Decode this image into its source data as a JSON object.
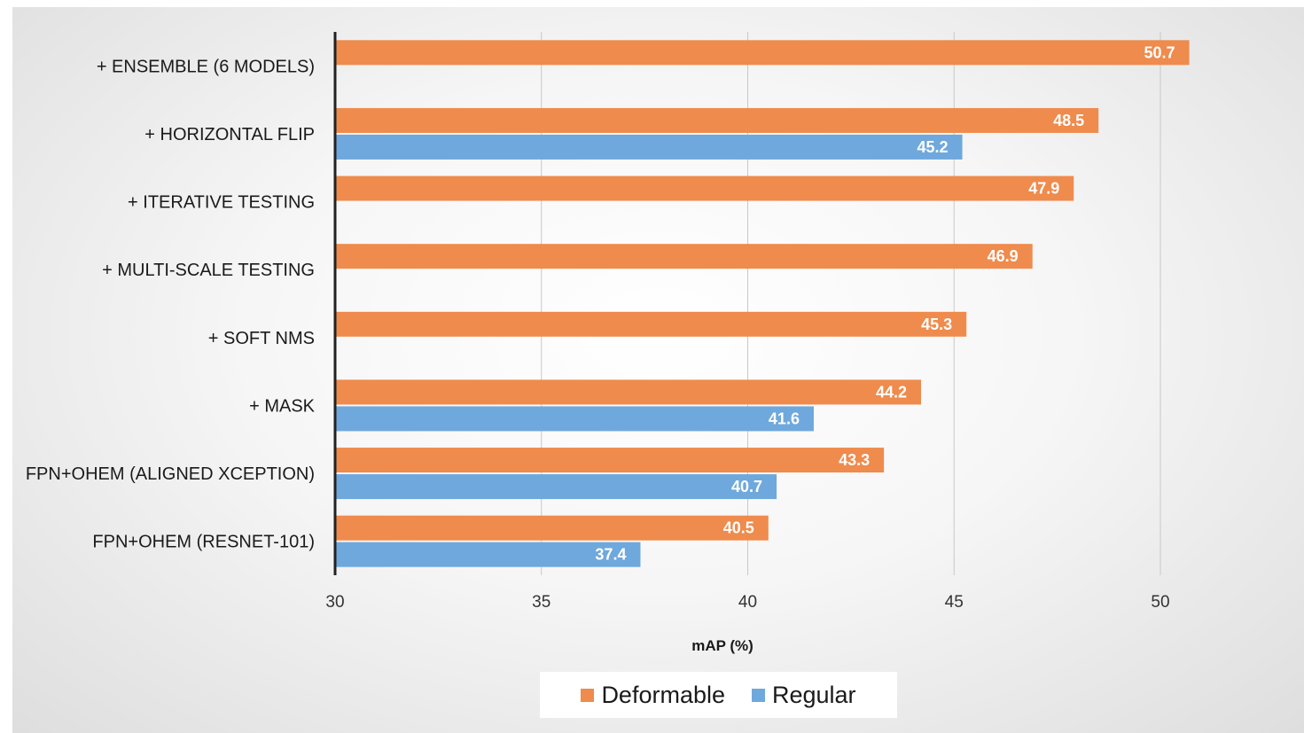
{
  "chart_data": {
    "type": "bar",
    "orientation": "horizontal",
    "categories": [
      "+ ENSEMBLE (6 MODELS)",
      "+ HORIZONTAL FLIP",
      "+ ITERATIVE TESTING",
      "+ MULTI-SCALE TESTING",
      "+ SOFT NMS",
      "+ MASK",
      "FPN+OHEM (ALIGNED XCEPTION)",
      "FPN+OHEM (RESNET-101)"
    ],
    "series": [
      {
        "name": "Deformable",
        "color": "#ef8b4c",
        "values": [
          50.7,
          48.5,
          47.9,
          46.9,
          45.3,
          44.2,
          43.3,
          40.5
        ]
      },
      {
        "name": "Regular",
        "color": "#6fa8dc",
        "values": [
          null,
          45.2,
          null,
          null,
          null,
          41.6,
          40.7,
          37.4
        ]
      }
    ],
    "xlabel": "mAP (%)",
    "xlim": [
      30,
      50
    ],
    "xticks": [
      30,
      35,
      40,
      45,
      50
    ],
    "grid": true,
    "legend_position": "bottom"
  }
}
